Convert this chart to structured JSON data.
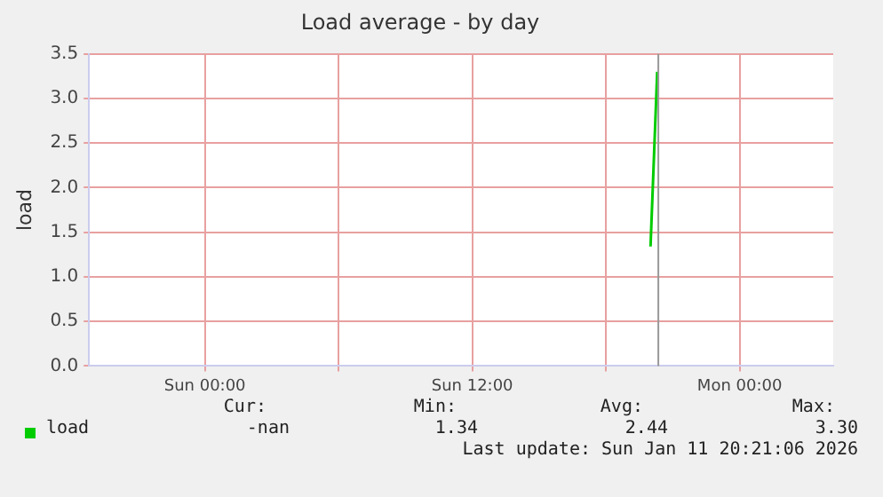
{
  "chart_data": {
    "type": "line",
    "title": "Load average - by day",
    "ylabel": "load",
    "x": [
      "2026-01-11T20:00",
      "2026-01-11T20:18"
    ],
    "series": [
      {
        "name": "load",
        "color": "#00cc00",
        "values": [
          1.34,
          3.3
        ]
      }
    ],
    "xlim": [
      "2026-01-10T18:48",
      "2026-01-12T04:12"
    ],
    "xticks": [
      {
        "value": "2026-01-11T00:00",
        "label": "Sun 00:00"
      },
      {
        "value": "2026-01-11T06:00",
        "label": null
      },
      {
        "value": "2026-01-11T12:00",
        "label": "Sun 12:00"
      },
      {
        "value": "2026-01-11T18:00",
        "label": null
      },
      {
        "value": "2026-01-12T00:00",
        "label": "Mon 00:00"
      }
    ],
    "ylim": [
      0,
      3.5
    ],
    "yticks": [
      {
        "value": 0,
        "label": "0.0"
      },
      {
        "value": 0.5,
        "label": "0.5"
      },
      {
        "value": 1,
        "label": "1.0"
      },
      {
        "value": 1.5,
        "label": "1.5"
      },
      {
        "value": 2,
        "label": "2.0"
      },
      {
        "value": 2.5,
        "label": "2.5"
      },
      {
        "value": 3,
        "label": "3.0"
      },
      {
        "value": 3.5,
        "label": "3.5"
      }
    ],
    "ref_lines": [
      {
        "axis": "x",
        "value": "2026-01-11T20:21",
        "label": null,
        "color": "#999999"
      }
    ],
    "grid": true,
    "legend": "bottom",
    "marker": "none",
    "annotations": [
      "Cur:",
      "Min:",
      "Avg:",
      "Max:",
      "-nan",
      "1.34",
      "2.44",
      "3.30",
      "Last update: Sun Jan 11 20:21:06 2026"
    ]
  }
}
